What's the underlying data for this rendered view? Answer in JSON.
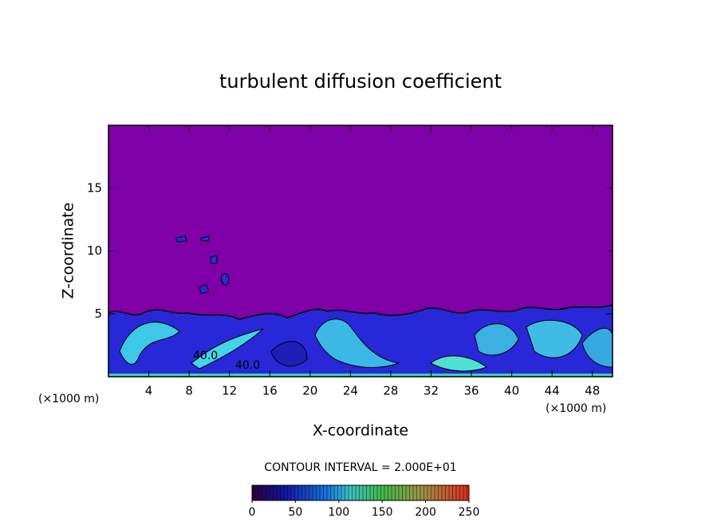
{
  "chart_data": {
    "type": "contour",
    "title": "turbulent diffusion coefficient",
    "xlabel": "X-coordinate",
    "ylabel": "Z-coordinate",
    "x_unit": "(×1000 m)",
    "y_unit": "(×1000 m)",
    "xlim": [
      0,
      50
    ],
    "xticks": [
      4,
      8,
      12,
      16,
      20,
      24,
      28,
      32,
      36,
      40,
      44,
      48
    ],
    "ylim": [
      0,
      20
    ],
    "yticks": [
      5,
      10,
      15
    ],
    "annotations": [
      "40.0",
      "40.0"
    ],
    "contour_interval": "CONTOUR INTERVAL = 2.000E+01",
    "colorbar": {
      "lim": [
        0,
        250
      ],
      "ticks": [
        0,
        50,
        100,
        150,
        200,
        250
      ]
    }
  }
}
